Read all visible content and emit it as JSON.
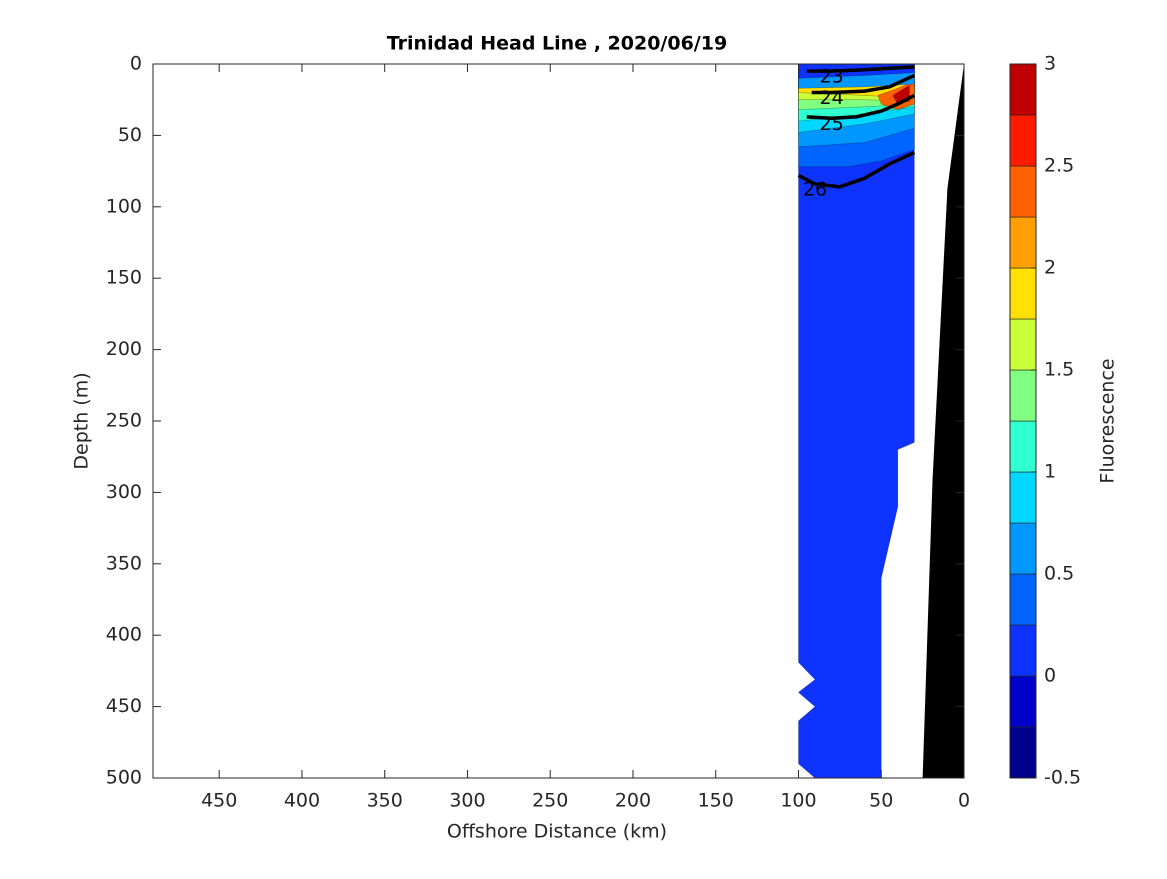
{
  "chart_data": {
    "type": "filled-contour",
    "title": "Trinidad Head Line , 2020/06/19",
    "x_label": "Offshore Distance (km)",
    "y_label": "Depth (m)",
    "xlim": [
      490,
      0
    ],
    "xticks": [
      450,
      400,
      350,
      300,
      250,
      200,
      150,
      100,
      50,
      0
    ],
    "ylim": [
      500,
      0
    ],
    "yticks": [
      0,
      50,
      100,
      150,
      200,
      250,
      300,
      350,
      400,
      450,
      500
    ],
    "colorbar": {
      "label": "Fluorescence",
      "levels": [
        -0.5,
        -0.25,
        0,
        0.25,
        0.5,
        0.75,
        1,
        1.25,
        1.5,
        1.75,
        2,
        2.25,
        2.5,
        2.75,
        3
      ],
      "colors": [
        "#00008f",
        "#0000c8",
        "#0f33ff",
        "#0064ff",
        "#0098ff",
        "#00d8ff",
        "#30ffd0",
        "#80ff80",
        "#c8ff38",
        "#ffe000",
        "#ffa000",
        "#ff6000",
        "#ff1a00",
        "#c00000"
      ],
      "ticks": [
        -0.5,
        0,
        0.5,
        1,
        1.5,
        2,
        2.5,
        3
      ]
    },
    "fills": [
      {
        "level": 0,
        "x": [
          100,
          30,
          30,
          40,
          40,
          50,
          50,
          90,
          100,
          100,
          90,
          100,
          90,
          100
        ],
        "depth": [
          0,
          0,
          265,
          270,
          310,
          360,
          500,
          500,
          490,
          460,
          450,
          440,
          431,
          419
        ]
      },
      {
        "level": 0.25,
        "x": [
          100,
          30,
          30,
          50,
          70,
          100
        ],
        "depth": [
          0,
          0,
          60,
          68,
          72,
          72
        ]
      },
      {
        "level": 0.5,
        "x": [
          100,
          30,
          30,
          60,
          100
        ],
        "depth": [
          0,
          0,
          45,
          55,
          58
        ]
      },
      {
        "level": 0.75,
        "x": [
          100,
          30,
          30,
          60,
          100
        ],
        "depth": [
          0,
          0,
          35,
          42,
          48
        ]
      },
      {
        "level": 1,
        "x": [
          100,
          30,
          30,
          60,
          100
        ],
        "depth": [
          0,
          0,
          30,
          35,
          40
        ]
      },
      {
        "level": 1.25,
        "x": [
          100,
          30,
          30,
          60,
          100
        ],
        "depth": [
          0,
          0,
          28,
          30,
          32
        ]
      },
      {
        "level": 1.5,
        "x": [
          100,
          30,
          30,
          60,
          100
        ],
        "depth": [
          0,
          0,
          26,
          25,
          25
        ]
      },
      {
        "level": 1.75,
        "x": [
          100,
          30,
          30,
          60,
          100
        ],
        "depth": [
          0,
          0,
          24,
          22,
          20
        ]
      },
      {
        "level": 2.25,
        "x": [
          52,
          40,
          30,
          30,
          40,
          50
        ],
        "depth": [
          22,
          17,
          12,
          28,
          32,
          28
        ]
      },
      {
        "level": 2.75,
        "x": [
          43,
          33,
          33,
          40
        ],
        "depth": [
          22,
          15,
          26,
          28
        ]
      },
      {
        "level": 0.5,
        "x": [
          100,
          30,
          30,
          60,
          100
        ],
        "depth": [
          0,
          0,
          14,
          16,
          17
        ]
      },
      {
        "level": 0,
        "x": [
          100,
          30,
          30,
          60,
          100
        ],
        "depth": [
          0,
          0,
          6,
          8,
          10
        ]
      }
    ],
    "bathymetry": {
      "x": [
        0,
        10,
        19,
        25,
        0
      ],
      "depth": [
        0,
        87,
        291,
        500,
        500
      ]
    },
    "contours": [
      {
        "value": 23,
        "x": [
          95,
          80,
          60,
          45,
          30
        ],
        "depth": [
          5,
          5,
          4,
          3,
          2
        ]
      },
      {
        "value": 24,
        "x": [
          92,
          80,
          60,
          45,
          30
        ],
        "depth": [
          20,
          20,
          19,
          16,
          8
        ]
      },
      {
        "value": 25,
        "x": [
          95,
          80,
          65,
          50,
          40,
          30
        ],
        "depth": [
          37,
          38,
          37,
          33,
          28,
          22
        ]
      },
      {
        "value": 26,
        "x": [
          100,
          90,
          75,
          60,
          45,
          30
        ],
        "depth": [
          78,
          84,
          86,
          80,
          70,
          62
        ]
      }
    ]
  }
}
